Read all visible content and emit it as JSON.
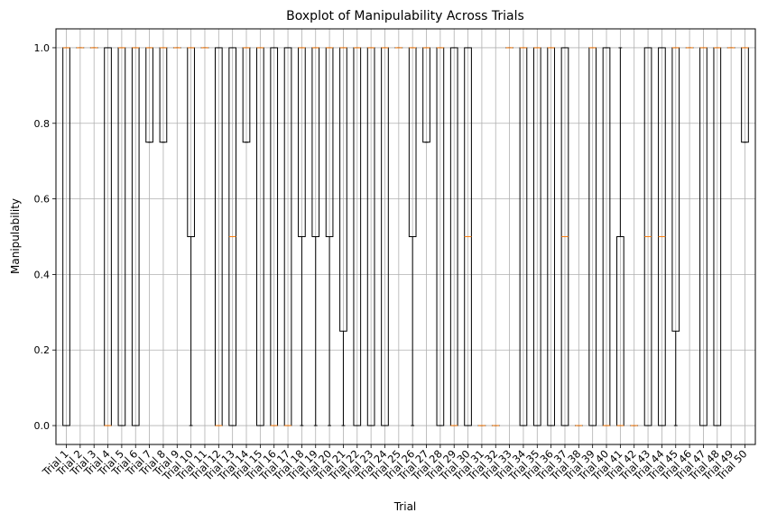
{
  "chart_data": {
    "type": "boxplot",
    "title": "Boxplot of Manipulability Across Trials",
    "xlabel": "Trial",
    "ylabel": "Manipulability",
    "ylim": [
      -0.05,
      1.05
    ],
    "yticks": [
      0.0,
      0.2,
      0.4,
      0.6,
      0.8,
      1.0
    ],
    "ytick_labels": [
      "0.0",
      "0.2",
      "0.4",
      "0.6",
      "0.8",
      "1.0"
    ],
    "grid": true,
    "colors": {
      "box": "#000000",
      "median": "#ff7f0e",
      "grid": "#b0b0b0"
    },
    "categories": [
      "Trial 1",
      "Trial 2",
      "Trial 3",
      "Trial 4",
      "Trial 5",
      "Trial 6",
      "Trial 7",
      "Trial 8",
      "Trial 9",
      "Trial 10",
      "Trial 11",
      "Trial 12",
      "Trial 13",
      "Trial 14",
      "Trial 15",
      "Trial 16",
      "Trial 17",
      "Trial 18",
      "Trial 19",
      "Trial 20",
      "Trial 21",
      "Trial 22",
      "Trial 23",
      "Trial 24",
      "Trial 25",
      "Trial 26",
      "Trial 27",
      "Trial 28",
      "Trial 29",
      "Trial 30",
      "Trial 31",
      "Trial 32",
      "Trial 33",
      "Trial 34",
      "Trial 35",
      "Trial 36",
      "Trial 37",
      "Trial 38",
      "Trial 39",
      "Trial 40",
      "Trial 41",
      "Trial 42",
      "Trial 43",
      "Trial 44",
      "Trial 45",
      "Trial 46",
      "Trial 47",
      "Trial 48",
      "Trial 49",
      "Trial 50"
    ],
    "boxes": [
      {
        "q1": 0,
        "median": 1,
        "q3": 1,
        "whislo": 0,
        "whishi": 1
      },
      {
        "q1": 1,
        "median": 1,
        "q3": 1,
        "whislo": 1,
        "whishi": 1
      },
      {
        "q1": 1,
        "median": 1,
        "q3": 1,
        "whislo": 1,
        "whishi": 1
      },
      {
        "q1": 0,
        "median": 0,
        "q3": 1,
        "whislo": 0,
        "whishi": 1
      },
      {
        "q1": 0,
        "median": 1,
        "q3": 1,
        "whislo": 0,
        "whishi": 1
      },
      {
        "q1": 0,
        "median": 1,
        "q3": 1,
        "whislo": 0,
        "whishi": 1
      },
      {
        "q1": 0.75,
        "median": 1,
        "q3": 1,
        "whislo": 0.75,
        "whishi": 1
      },
      {
        "q1": 0.75,
        "median": 1,
        "q3": 1,
        "whislo": 0.75,
        "whishi": 1
      },
      {
        "q1": 1,
        "median": 1,
        "q3": 1,
        "whislo": 1,
        "whishi": 1
      },
      {
        "q1": 0.5,
        "median": 1,
        "q3": 1,
        "whislo": 0,
        "whishi": 1
      },
      {
        "q1": 1,
        "median": 1,
        "q3": 1,
        "whislo": 1,
        "whishi": 1
      },
      {
        "q1": 0,
        "median": 0,
        "q3": 1,
        "whislo": 0,
        "whishi": 1
      },
      {
        "q1": 0,
        "median": 0.5,
        "q3": 1,
        "whislo": 0,
        "whishi": 1
      },
      {
        "q1": 0.75,
        "median": 1,
        "q3": 1,
        "whislo": 0.75,
        "whishi": 1
      },
      {
        "q1": 0,
        "median": 1,
        "q3": 1,
        "whislo": 0,
        "whishi": 1
      },
      {
        "q1": 0,
        "median": 0,
        "q3": 1,
        "whislo": 0,
        "whishi": 1
      },
      {
        "q1": 0,
        "median": 0,
        "q3": 1,
        "whislo": 0,
        "whishi": 1
      },
      {
        "q1": 0.5,
        "median": 1,
        "q3": 1,
        "whislo": 0,
        "whishi": 1
      },
      {
        "q1": 0.5,
        "median": 1,
        "q3": 1,
        "whislo": 0,
        "whishi": 1
      },
      {
        "q1": 0.5,
        "median": 1,
        "q3": 1,
        "whislo": 0,
        "whishi": 1
      },
      {
        "q1": 0.25,
        "median": 1,
        "q3": 1,
        "whislo": 0,
        "whishi": 1
      },
      {
        "q1": 0,
        "median": 1,
        "q3": 1,
        "whislo": 0,
        "whishi": 1
      },
      {
        "q1": 0,
        "median": 1,
        "q3": 1,
        "whislo": 0,
        "whishi": 1
      },
      {
        "q1": 0,
        "median": 1,
        "q3": 1,
        "whislo": 0,
        "whishi": 1
      },
      {
        "q1": 1,
        "median": 1,
        "q3": 1,
        "whislo": 1,
        "whishi": 1
      },
      {
        "q1": 0.5,
        "median": 1,
        "q3": 1,
        "whislo": 0,
        "whishi": 1
      },
      {
        "q1": 0.75,
        "median": 1,
        "q3": 1,
        "whislo": 0.75,
        "whishi": 1
      },
      {
        "q1": 0,
        "median": 1,
        "q3": 1,
        "whislo": 0,
        "whishi": 1
      },
      {
        "q1": 0,
        "median": 0,
        "q3": 1,
        "whislo": 0,
        "whishi": 1
      },
      {
        "q1": 0,
        "median": 0.5,
        "q3": 1,
        "whislo": 0,
        "whishi": 1
      },
      {
        "q1": 0,
        "median": 0,
        "q3": 0,
        "whislo": 0,
        "whishi": 0
      },
      {
        "q1": 0,
        "median": 0,
        "q3": 0,
        "whislo": 0,
        "whishi": 0
      },
      {
        "q1": 1,
        "median": 1,
        "q3": 1,
        "whislo": 1,
        "whishi": 1
      },
      {
        "q1": 0,
        "median": 1,
        "q3": 1,
        "whislo": 0,
        "whishi": 1
      },
      {
        "q1": 0,
        "median": 1,
        "q3": 1,
        "whislo": 0,
        "whishi": 1
      },
      {
        "q1": 0,
        "median": 1,
        "q3": 1,
        "whislo": 0,
        "whishi": 1
      },
      {
        "q1": 0,
        "median": 0.5,
        "q3": 1,
        "whislo": 0,
        "whishi": 1
      },
      {
        "q1": 0,
        "median": 0,
        "q3": 0,
        "whislo": 0,
        "whishi": 0
      },
      {
        "q1": 0,
        "median": 1,
        "q3": 1,
        "whislo": 0,
        "whishi": 1
      },
      {
        "q1": 0,
        "median": 0,
        "q3": 1,
        "whislo": 0,
        "whishi": 1
      },
      {
        "q1": 0,
        "median": 0,
        "q3": 0.5,
        "whislo": 0,
        "whishi": 1
      },
      {
        "q1": 0,
        "median": 0,
        "q3": 0,
        "whislo": 0,
        "whishi": 0
      },
      {
        "q1": 0,
        "median": 0.5,
        "q3": 1,
        "whislo": 0,
        "whishi": 1
      },
      {
        "q1": 0,
        "median": 0.5,
        "q3": 1,
        "whislo": 0,
        "whishi": 1
      },
      {
        "q1": 0.25,
        "median": 1,
        "q3": 1,
        "whislo": 0,
        "whishi": 1
      },
      {
        "q1": 1,
        "median": 1,
        "q3": 1,
        "whislo": 1,
        "whishi": 1
      },
      {
        "q1": 0,
        "median": 1,
        "q3": 1,
        "whislo": 0,
        "whishi": 1
      },
      {
        "q1": 0,
        "median": 1,
        "q3": 1,
        "whislo": 0,
        "whishi": 1
      },
      {
        "q1": 1,
        "median": 1,
        "q3": 1,
        "whislo": 1,
        "whishi": 1
      },
      {
        "q1": 0.75,
        "median": 1,
        "q3": 1,
        "whislo": 0.75,
        "whishi": 1
      }
    ]
  }
}
